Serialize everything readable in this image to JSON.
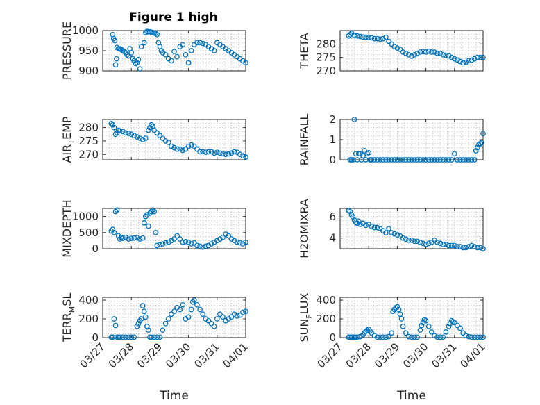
{
  "figure": {
    "title": "Figure 1 high"
  },
  "chart_data": [
    {
      "type": "scatter",
      "ylabel": "PRESSURE",
      "ylabel_sub": "",
      "ylim": [
        900,
        1000
      ],
      "yticks": [
        900,
        950,
        1000
      ],
      "xticks": [
        "03/27",
        "03/28",
        "03/29",
        "03/30",
        "03/31",
        "04/01"
      ],
      "xlim": [
        0,
        5
      ],
      "xlabel": "",
      "color": "#0072bd",
      "series": [
        {
          "x": [
            0.35,
            0.38,
            0.42,
            0.45,
            0.48,
            0.5,
            0.55,
            0.6,
            0.65,
            0.7,
            0.75,
            0.8,
            0.85,
            0.9,
            0.95,
            1.0,
            1.05,
            1.1,
            1.15,
            1.2,
            1.25,
            1.3,
            1.35,
            1.45,
            1.5,
            1.55,
            1.6,
            1.65,
            1.7,
            1.75,
            1.8,
            1.85,
            1.9,
            1.95,
            2.0,
            2.05,
            2.1,
            2.2,
            2.3,
            2.4,
            2.5,
            2.6,
            2.7,
            2.8,
            2.9,
            3.0,
            3.1,
            3.2,
            3.3,
            3.4,
            3.5,
            3.6,
            3.7,
            3.8,
            3.9,
            4.0,
            4.1,
            4.2,
            4.3,
            4.4,
            4.5,
            4.6,
            4.7,
            4.8,
            4.9,
            5.0
          ],
          "y": [
            990,
            980,
            975,
            915,
            930,
            958,
            955,
            955,
            953,
            950,
            948,
            945,
            940,
            937,
            955,
            945,
            930,
            925,
            918,
            920,
            928,
            905,
            960,
            970,
            995,
            998,
            997,
            997,
            996,
            995,
            994,
            993,
            990,
            970,
            960,
            950,
            945,
            940,
            930,
            925,
            948,
            935,
            960,
            965,
            940,
            920,
            950,
            965,
            970,
            970,
            968,
            965,
            960,
            955,
            950,
            970,
            965,
            960,
            955,
            950,
            945,
            940,
            935,
            930,
            925,
            920
          ]
        }
      ]
    },
    {
      "type": "scatter",
      "ylabel": "THETA",
      "ylabel_sub": "",
      "ylim": [
        270,
        285
      ],
      "yticks": [
        270,
        275,
        280
      ],
      "xticks": [
        "03/27",
        "03/28",
        "03/29",
        "03/30",
        "03/31",
        "04/01"
      ],
      "xlim": [
        0,
        5
      ],
      "xlabel": "",
      "color": "#0072bd",
      "series": [
        {
          "x": [
            0.3,
            0.35,
            0.4,
            0.5,
            0.6,
            0.7,
            0.8,
            0.9,
            1.0,
            1.1,
            1.2,
            1.3,
            1.4,
            1.5,
            1.6,
            1.7,
            1.8,
            1.9,
            2.0,
            2.1,
            2.2,
            2.3,
            2.4,
            2.5,
            2.6,
            2.7,
            2.8,
            2.9,
            3.0,
            3.1,
            3.2,
            3.3,
            3.4,
            3.5,
            3.6,
            3.7,
            3.8,
            3.9,
            4.0,
            4.1,
            4.2,
            4.3,
            4.4,
            4.5,
            4.6,
            4.7,
            4.8,
            4.9,
            5.0
          ],
          "y": [
            283,
            283.5,
            284,
            283.2,
            283,
            282.8,
            282.6,
            282.5,
            282.4,
            282.3,
            282,
            282,
            281.8,
            282,
            282.5,
            281,
            280,
            279,
            278.5,
            278,
            277,
            276.5,
            276,
            275.5,
            276,
            276.5,
            277,
            277.2,
            277,
            277.3,
            277,
            277,
            276.5,
            276.5,
            276,
            275.8,
            275.6,
            275,
            274.5,
            274,
            273.5,
            273,
            273.2,
            273.8,
            274,
            274.5,
            275,
            275,
            275
          ]
        }
      ]
    },
    {
      "type": "scatter",
      "ylabel": "AIR",
      "ylabel_sub": "T",
      "ylabel_post": "EMP",
      "ylim": [
        268,
        283
      ],
      "yticks": [
        270,
        275,
        280
      ],
      "xticks": [
        "03/27",
        "03/28",
        "03/29",
        "03/30",
        "03/31",
        "04/01"
      ],
      "xlim": [
        0,
        5
      ],
      "xlabel": "",
      "color": "#0072bd",
      "series": [
        {
          "x": [
            0.3,
            0.35,
            0.4,
            0.45,
            0.5,
            0.55,
            0.6,
            0.7,
            0.8,
            0.9,
            1.0,
            1.1,
            1.2,
            1.3,
            1.4,
            1.5,
            1.6,
            1.65,
            1.7,
            1.75,
            1.8,
            1.9,
            2.0,
            2.1,
            2.2,
            2.3,
            2.4,
            2.5,
            2.6,
            2.7,
            2.8,
            2.9,
            3.0,
            3.1,
            3.2,
            3.3,
            3.4,
            3.5,
            3.6,
            3.7,
            3.8,
            3.9,
            4.0,
            4.1,
            4.2,
            4.3,
            4.4,
            4.5,
            4.6,
            4.7,
            4.8,
            4.9,
            5.0
          ],
          "y": [
            281.5,
            281,
            280,
            277.5,
            278,
            279,
            278.8,
            278.5,
            278,
            277.8,
            277.5,
            277,
            276.5,
            276,
            275.5,
            276,
            279,
            280,
            281,
            280.5,
            279,
            278,
            277,
            276,
            275,
            274.5,
            273,
            272.5,
            272,
            272,
            271.5,
            272,
            273,
            273.5,
            273,
            272,
            271,
            271,
            270.8,
            271,
            271,
            270.5,
            270.8,
            270.5,
            270.3,
            270,
            270.2,
            270.5,
            271,
            270.8,
            270,
            269.5,
            269
          ]
        }
      ]
    },
    {
      "type": "scatter",
      "ylabel": "RAINFALL",
      "ylabel_sub": "",
      "ylim": [
        0,
        2
      ],
      "yticks": [
        0,
        1,
        2
      ],
      "xticks": [
        "03/27",
        "03/28",
        "03/29",
        "03/30",
        "03/31",
        "04/01"
      ],
      "xlim": [
        0,
        5
      ],
      "xlabel": "",
      "color": "#0072bd",
      "series": [
        {
          "x": [
            0.35,
            0.4,
            0.45,
            0.5,
            0.55,
            0.6,
            0.65,
            0.7,
            0.75,
            0.8,
            0.85,
            0.9,
            0.95,
            1.0,
            1.05,
            1.1,
            1.2,
            1.3,
            1.4,
            1.5,
            1.6,
            1.7,
            1.8,
            1.9,
            2.0,
            2.1,
            2.2,
            2.3,
            2.4,
            2.5,
            2.6,
            2.7,
            2.8,
            2.9,
            3.0,
            3.1,
            3.2,
            3.3,
            3.4,
            3.5,
            3.6,
            3.7,
            3.8,
            3.9,
            4.0,
            4.1,
            4.2,
            4.3,
            4.4,
            4.5,
            4.6,
            4.7,
            4.75,
            4.8,
            4.85,
            4.9,
            4.95,
            5.0
          ],
          "y": [
            0,
            0,
            0,
            2.0,
            0.3,
            0,
            0.3,
            0.3,
            0,
            0.2,
            0.45,
            0,
            0.3,
            0.35,
            0,
            0,
            0,
            0,
            0,
            0,
            0,
            0,
            0,
            0,
            0,
            0,
            0,
            0,
            0,
            0,
            0,
            0,
            0,
            0,
            0,
            0,
            0,
            0,
            0,
            0,
            0,
            0,
            0,
            0,
            0.3,
            0,
            0,
            0,
            0,
            0,
            0,
            0,
            0.45,
            0.6,
            0.75,
            0.8,
            0.85,
            1.3
          ]
        }
      ]
    },
    {
      "type": "scatter",
      "ylabel": "MIXDEPTH",
      "ylabel_sub": "",
      "ylim": [
        0,
        1250
      ],
      "yticks": [
        0,
        500,
        1000
      ],
      "xticks": [
        "03/27",
        "03/28",
        "03/29",
        "03/30",
        "03/31",
        "04/01"
      ],
      "xlim": [
        0,
        5
      ],
      "xlabel": "",
      "color": "#0072bd",
      "series": [
        {
          "x": [
            0.3,
            0.35,
            0.4,
            0.45,
            0.5,
            0.55,
            0.6,
            0.65,
            0.7,
            0.8,
            0.9,
            1.0,
            1.1,
            1.2,
            1.3,
            1.4,
            1.45,
            1.5,
            1.55,
            1.6,
            1.65,
            1.7,
            1.75,
            1.8,
            1.85,
            1.9,
            2.0,
            2.1,
            2.2,
            2.3,
            2.4,
            2.5,
            2.6,
            2.7,
            2.8,
            2.9,
            3.0,
            3.1,
            3.2,
            3.3,
            3.4,
            3.5,
            3.6,
            3.7,
            3.8,
            3.9,
            4.0,
            4.1,
            4.2,
            4.3,
            4.4,
            4.5,
            4.6,
            4.7,
            4.8,
            4.9,
            5.0
          ],
          "y": [
            550,
            600,
            500,
            1150,
            1200,
            400,
            300,
            350,
            320,
            350,
            300,
            320,
            330,
            340,
            300,
            330,
            800,
            1000,
            1050,
            700,
            1100,
            1150,
            1200,
            1150,
            500,
            100,
            120,
            150,
            180,
            200,
            250,
            300,
            400,
            300,
            200,
            220,
            200,
            150,
            180,
            100,
            80,
            50,
            80,
            100,
            150,
            200,
            250,
            300,
            350,
            450,
            400,
            300,
            250,
            200,
            180,
            150,
            200
          ]
        }
      ]
    },
    {
      "type": "scatter",
      "ylabel": "H2OMIXRA",
      "ylabel_sub": "",
      "ylim": [
        3,
        6.8
      ],
      "yticks": [
        4,
        6
      ],
      "xticks": [
        "03/27",
        "03/28",
        "03/29",
        "03/30",
        "03/31",
        "04/01"
      ],
      "xlim": [
        0,
        5
      ],
      "xlabel": "",
      "color": "#0072bd",
      "series": [
        {
          "x": [
            0.3,
            0.35,
            0.4,
            0.45,
            0.5,
            0.55,
            0.6,
            0.65,
            0.7,
            0.8,
            0.9,
            1.0,
            1.1,
            1.2,
            1.3,
            1.4,
            1.5,
            1.6,
            1.7,
            1.8,
            1.9,
            2.0,
            2.1,
            2.2,
            2.3,
            2.4,
            2.5,
            2.6,
            2.7,
            2.8,
            2.9,
            3.0,
            3.1,
            3.2,
            3.3,
            3.4,
            3.5,
            3.6,
            3.7,
            3.8,
            3.9,
            4.0,
            4.1,
            4.2,
            4.3,
            4.4,
            4.5,
            4.6,
            4.7,
            4.8,
            4.9,
            5.0
          ],
          "y": [
            6.6,
            6.5,
            6.2,
            6.0,
            5.7,
            5.5,
            5.4,
            5.6,
            5.3,
            5.4,
            5.2,
            5.3,
            5.1,
            5.0,
            5.0,
            4.9,
            4.7,
            4.5,
            4.9,
            4.5,
            4.4,
            4.3,
            4.2,
            4.0,
            3.9,
            3.8,
            3.8,
            3.7,
            3.7,
            3.6,
            3.5,
            3.4,
            3.5,
            3.6,
            3.8,
            3.6,
            3.5,
            3.4,
            3.4,
            3.3,
            3.3,
            3.3,
            3.2,
            3.2,
            3.1,
            3.1,
            3.2,
            3.3,
            3.2,
            3.1,
            3.1,
            3.0
          ]
        }
      ]
    },
    {
      "type": "scatter",
      "ylabel": "TERR",
      "ylabel_sub": "M",
      "ylabel_post": "SL",
      "ylim": [
        0,
        430
      ],
      "yticks": [
        0,
        200,
        400
      ],
      "xticks": [
        "03/27",
        "03/28",
        "03/29",
        "03/30",
        "03/31",
        "04/01"
      ],
      "xlim": [
        0,
        5
      ],
      "xlabel": "Time",
      "color": "#0072bd",
      "series": [
        {
          "x": [
            0.3,
            0.35,
            0.4,
            0.45,
            0.5,
            0.55,
            0.6,
            0.7,
            0.8,
            0.9,
            1.0,
            1.1,
            1.2,
            1.25,
            1.3,
            1.35,
            1.4,
            1.45,
            1.5,
            1.55,
            1.6,
            1.65,
            1.7,
            1.8,
            1.9,
            2.0,
            2.1,
            2.2,
            2.3,
            2.4,
            2.5,
            2.6,
            2.7,
            2.8,
            2.9,
            3.0,
            3.1,
            3.15,
            3.2,
            3.3,
            3.4,
            3.5,
            3.6,
            3.7,
            3.8,
            3.9,
            4.0,
            4.1,
            4.2,
            4.3,
            4.4,
            4.5,
            4.6,
            4.7,
            4.8,
            4.9,
            5.0
          ],
          "y": [
            5,
            5,
            200,
            130,
            5,
            5,
            5,
            5,
            5,
            5,
            5,
            5,
            120,
            150,
            180,
            200,
            340,
            280,
            220,
            120,
            80,
            5,
            5,
            5,
            5,
            5,
            80,
            150,
            200,
            250,
            280,
            320,
            300,
            350,
            200,
            220,
            300,
            380,
            400,
            350,
            300,
            250,
            200,
            180,
            150,
            120,
            200,
            250,
            220,
            180,
            200,
            220,
            250,
            230,
            240,
            270,
            280
          ]
        }
      ]
    },
    {
      "type": "scatter",
      "ylabel": "SUN",
      "ylabel_sub": "F",
      "ylabel_post": "LUX",
      "ylim": [
        0,
        430
      ],
      "yticks": [
        0,
        200,
        400
      ],
      "xticks": [
        "03/27",
        "03/28",
        "03/29",
        "03/30",
        "03/31",
        "04/01"
      ],
      "xlim": [
        0,
        5
      ],
      "xlabel": "Time",
      "color": "#0072bd",
      "series": [
        {
          "x": [
            0.3,
            0.35,
            0.4,
            0.45,
            0.5,
            0.55,
            0.6,
            0.7,
            0.8,
            0.85,
            0.9,
            0.95,
            1.0,
            1.05,
            1.1,
            1.2,
            1.3,
            1.4,
            1.5,
            1.6,
            1.7,
            1.8,
            1.85,
            1.9,
            1.95,
            2.0,
            2.05,
            2.1,
            2.15,
            2.2,
            2.3,
            2.4,
            2.5,
            2.6,
            2.7,
            2.8,
            2.85,
            2.9,
            2.95,
            3.0,
            3.1,
            3.2,
            3.3,
            3.4,
            3.5,
            3.6,
            3.7,
            3.8,
            3.85,
            3.9,
            3.95,
            4.0,
            4.1,
            4.2,
            4.3,
            4.4,
            4.5,
            4.6,
            4.7,
            4.8,
            4.9,
            5.0
          ],
          "y": [
            5,
            5,
            5,
            5,
            5,
            5,
            5,
            10,
            30,
            50,
            70,
            80,
            90,
            70,
            50,
            20,
            5,
            5,
            5,
            5,
            10,
            50,
            280,
            300,
            320,
            330,
            300,
            250,
            200,
            120,
            50,
            10,
            5,
            5,
            5,
            80,
            130,
            160,
            190,
            180,
            120,
            60,
            20,
            5,
            5,
            5,
            60,
            120,
            150,
            180,
            170,
            160,
            130,
            100,
            50,
            20,
            10,
            5,
            5,
            5,
            5,
            5
          ]
        }
      ]
    }
  ]
}
